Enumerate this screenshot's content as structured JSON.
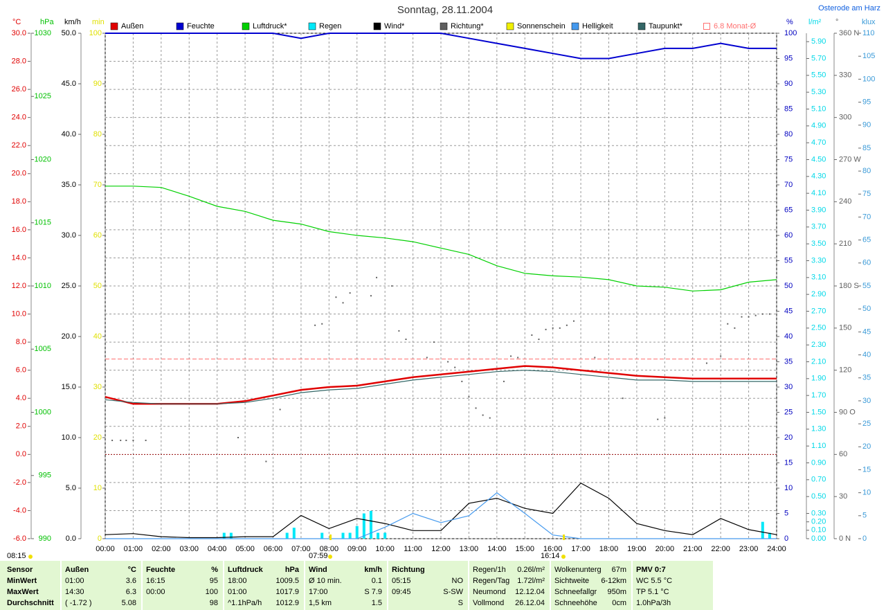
{
  "chart_data": {
    "type": "line",
    "title": "Sonntag, 28.11.2004",
    "location": "Osterode am Harz",
    "grid": true,
    "xlim": [
      0,
      24
    ],
    "xticks": [
      {
        "value": 0,
        "label": "00:00"
      },
      {
        "value": 1,
        "label": "01:00"
      },
      {
        "value": 2,
        "label": "02:00"
      },
      {
        "value": 3,
        "label": "03:00"
      },
      {
        "value": 4,
        "label": "04:00"
      },
      {
        "value": 5,
        "label": "05:00"
      },
      {
        "value": 6,
        "label": "06:00"
      },
      {
        "value": 7,
        "label": "07:00"
      },
      {
        "value": 8,
        "label": "08:00"
      },
      {
        "value": 9,
        "label": "09:00"
      },
      {
        "value": 10,
        "label": "10:00"
      },
      {
        "value": 11,
        "label": "11:00"
      },
      {
        "value": 12,
        "label": "12:00"
      },
      {
        "value": 13,
        "label": "13:00"
      },
      {
        "value": 14,
        "label": "14:00"
      },
      {
        "value": 15,
        "label": "15:00"
      },
      {
        "value": 16,
        "label": "16:00"
      },
      {
        "value": 17,
        "label": "17:00"
      },
      {
        "value": 18,
        "label": "18:00"
      },
      {
        "value": 19,
        "label": "19:00"
      },
      {
        "value": 20,
        "label": "20:00"
      },
      {
        "value": 21,
        "label": "21:00"
      },
      {
        "value": 22,
        "label": "22:00"
      },
      {
        "value": 23,
        "label": "23:00"
      },
      {
        "value": 24,
        "label": "24:00"
      }
    ],
    "x": [
      0,
      1,
      2,
      3,
      4,
      5,
      6,
      7,
      8,
      9,
      10,
      11,
      12,
      13,
      14,
      15,
      16,
      17,
      18,
      19,
      20,
      21,
      22,
      23,
      24
    ],
    "axes": [
      {
        "unit": "°C",
        "color": "#e00000",
        "lim": [
          -6,
          30
        ],
        "ticks": [
          {
            "value": -6,
            "label": "-6.0"
          },
          {
            "value": -4,
            "label": "-4.0"
          },
          {
            "value": -2,
            "label": "-2.0"
          },
          {
            "value": 0,
            "label": "0.0"
          },
          {
            "value": 2,
            "label": "2.0"
          },
          {
            "value": 4,
            "label": "4.0"
          },
          {
            "value": 6,
            "label": "6.0"
          },
          {
            "value": 8,
            "label": "8.0"
          },
          {
            "value": 10,
            "label": "10.0"
          },
          {
            "value": 12,
            "label": "12.0"
          },
          {
            "value": 14,
            "label": "14.0"
          },
          {
            "value": 16,
            "label": "16.0"
          },
          {
            "value": 18,
            "label": "18.0"
          },
          {
            "value": 20,
            "label": "20.0"
          },
          {
            "value": 22,
            "label": "22.0"
          },
          {
            "value": 24,
            "label": "24.0"
          },
          {
            "value": 26,
            "label": "26.0"
          },
          {
            "value": 28,
            "label": "28.0"
          },
          {
            "value": 30,
            "label": "30.0"
          }
        ]
      },
      {
        "unit": "hPa",
        "color": "#00c000",
        "lim": [
          990,
          1030
        ],
        "ticks": [
          990,
          995,
          1000,
          1005,
          1010,
          1015,
          1020,
          1025,
          1030
        ]
      },
      {
        "unit": "km/h",
        "color": "#000000",
        "lim": [
          0,
          50
        ],
        "ticks": [
          {
            "value": 0,
            "label": "0.0"
          },
          {
            "value": 5,
            "label": "5.0"
          },
          {
            "value": 10,
            "label": "10.0"
          },
          {
            "value": 15,
            "label": "15.0"
          },
          {
            "value": 20,
            "label": "20.0"
          },
          {
            "value": 25,
            "label": "25.0"
          },
          {
            "value": 30,
            "label": "30.0"
          },
          {
            "value": 35,
            "label": "35.0"
          },
          {
            "value": 40,
            "label": "40.0"
          },
          {
            "value": 45,
            "label": "45.0"
          },
          {
            "value": 50,
            "label": "50.0"
          }
        ]
      },
      {
        "unit": "min",
        "color": "#e0e000",
        "lim": [
          0,
          100
        ],
        "ticks": [
          0,
          10,
          20,
          30,
          40,
          50,
          60,
          70,
          80,
          90,
          100
        ]
      },
      {
        "unit": "%",
        "color": "#0000c0",
        "lim": [
          0,
          100
        ],
        "ticks": [
          0,
          5,
          10,
          15,
          20,
          25,
          30,
          35,
          40,
          45,
          50,
          55,
          60,
          65,
          70,
          75,
          80,
          85,
          90,
          95,
          100
        ]
      },
      {
        "unit": "l/m²",
        "color": "#00d8e8",
        "lim": [
          0,
          6
        ],
        "ticks": [
          {
            "value": 0,
            "label": "0.00"
          },
          {
            "value": 0.1,
            "label": "0.10"
          },
          {
            "value": 0.2,
            "label": "0.20"
          },
          {
            "value": 0.3,
            "label": "0.30"
          },
          {
            "value": 0.5,
            "label": "0.50"
          },
          {
            "value": 0.7,
            "label": "0.70"
          },
          {
            "value": 0.9,
            "label": "0.90"
          },
          {
            "value": 1.1,
            "label": "1.10"
          },
          {
            "value": 1.3,
            "label": "1.30"
          },
          {
            "value": 1.5,
            "label": "1.50"
          },
          {
            "value": 1.7,
            "label": "1.70"
          },
          {
            "value": 1.9,
            "label": "1.90"
          },
          {
            "value": 2.1,
            "label": "2.10"
          },
          {
            "value": 2.3,
            "label": "2.30"
          },
          {
            "value": 2.5,
            "label": "2.50"
          },
          {
            "value": 2.7,
            "label": "2.70"
          },
          {
            "value": 2.9,
            "label": "2.90"
          },
          {
            "value": 3.1,
            "label": "3.10"
          },
          {
            "value": 3.3,
            "label": "3.30"
          },
          {
            "value": 3.5,
            "label": "3.50"
          },
          {
            "value": 3.7,
            "label": "3.70"
          },
          {
            "value": 3.9,
            "label": "3.90"
          },
          {
            "value": 4.1,
            "label": "4.10"
          },
          {
            "value": 4.3,
            "label": "4.30"
          },
          {
            "value": 4.5,
            "label": "4.50"
          },
          {
            "value": 4.7,
            "label": "4.70"
          },
          {
            "value": 4.9,
            "label": "4.90"
          },
          {
            "value": 5.1,
            "label": "5.10"
          },
          {
            "value": 5.3,
            "label": "5.30"
          },
          {
            "value": 5.5,
            "label": "5.50"
          },
          {
            "value": 5.7,
            "label": "5.70"
          },
          {
            "value": 5.9,
            "label": "5.90"
          }
        ]
      },
      {
        "unit": "°",
        "color": "#606060",
        "lim": [
          0,
          360
        ],
        "ticks": [
          {
            "value": 0,
            "label": "0 N"
          },
          30,
          60,
          {
            "value": 90,
            "label": "90 O"
          },
          120,
          150,
          {
            "value": 180,
            "label": "180 S"
          },
          210,
          240,
          {
            "value": 270,
            "label": "270 W"
          },
          300,
          330,
          {
            "value": 360,
            "label": "360 N"
          }
        ]
      },
      {
        "unit": "klux",
        "color": "#3a9ad8",
        "lim": [
          0,
          110
        ],
        "ticks": [
          0,
          5,
          10,
          15,
          20,
          25,
          30,
          35,
          40,
          45,
          50,
          55,
          60,
          65,
          70,
          75,
          80,
          85,
          90,
          95,
          100,
          105,
          110
        ]
      }
    ],
    "series": [
      {
        "name": "Außen",
        "color": "#e00000",
        "axis": 0,
        "values": [
          4.1,
          3.6,
          3.6,
          3.6,
          3.6,
          3.8,
          4.2,
          4.6,
          4.8,
          4.9,
          5.2,
          5.5,
          5.7,
          5.9,
          6.1,
          6.3,
          6.2,
          6.0,
          5.8,
          5.6,
          5.5,
          5.4,
          5.4,
          5.4,
          5.4
        ]
      },
      {
        "name": "Feuchte",
        "color": "#0000d0",
        "axis": 4,
        "values": [
          100,
          100,
          100,
          100,
          100,
          100,
          100,
          99,
          100,
          100,
          100,
          100,
          100,
          99,
          98,
          97,
          96,
          95,
          95,
          96,
          97,
          97,
          98,
          97,
          97
        ]
      },
      {
        "name": "Luftdruck*",
        "color": "#00d000",
        "axis": 1,
        "values": [
          1017.9,
          1017.9,
          1017.8,
          1017.1,
          1016.3,
          1015.9,
          1015.2,
          1014.9,
          1014.3,
          1014.0,
          1013.8,
          1013.5,
          1013.0,
          1012.5,
          1011.6,
          1011.0,
          1010.8,
          1010.7,
          1010.5,
          1010.0,
          1009.9,
          1009.6,
          1009.7,
          1010.3,
          1010.5
        ]
      },
      {
        "name": "Regen",
        "color": "#00e8f8",
        "axis": 5,
        "kind": "bars",
        "x": [
          4.25,
          4.5,
          6.5,
          6.75,
          7.75,
          8.5,
          8.75,
          9.0,
          9.25,
          9.5,
          9.75,
          10.0,
          23.5,
          23.75
        ],
        "values": [
          0.07,
          0.07,
          0.07,
          0.13,
          0.07,
          0.07,
          0.07,
          0.15,
          0.3,
          0.33,
          0.07,
          0.07,
          0.2,
          0.07
        ]
      },
      {
        "name": "Wind*",
        "color": "#000000",
        "axis": 2,
        "values": [
          0.4,
          0.5,
          0.2,
          0.1,
          0.1,
          0.2,
          0.2,
          2.3,
          1.0,
          2.0,
          1.5,
          0.8,
          0.8,
          3.5,
          4.0,
          3.0,
          2.5,
          5.5,
          4.0,
          1.5,
          0.8,
          0.4,
          2.0,
          0.9,
          0.4
        ]
      },
      {
        "name": "Richtung*",
        "color": "#606060",
        "axis": 6,
        "kind": "dots",
        "x": [
          0.25,
          0.55,
          0.75,
          1.0,
          1.45,
          4.75,
          5.75,
          6.25,
          7.5,
          7.75,
          8.25,
          8.5,
          8.75,
          9.5,
          9.7,
          10.25,
          10.5,
          10.75,
          11.5,
          11.75,
          12.25,
          12.5,
          12.75,
          13.0,
          13.25,
          13.5,
          13.75,
          14.25,
          14.5,
          14.75,
          15.25,
          15.5,
          15.75,
          16.0,
          16.25,
          16.5,
          16.75,
          17.5,
          18.5,
          19.75,
          20.0,
          21.5,
          22.0,
          22.25,
          22.5,
          22.75,
          23.0,
          23.25,
          23.5,
          23.75
        ],
        "values": [
          70,
          70,
          70,
          70,
          70,
          72,
          55,
          92,
          152,
          153,
          172,
          168,
          175,
          173,
          186,
          180,
          148,
          142,
          129,
          140,
          126,
          122,
          112,
          101,
          93,
          88,
          86,
          112,
          130,
          129,
          145,
          142,
          149,
          150,
          150,
          152,
          155,
          129,
          100,
          85,
          86,
          125,
          130,
          153,
          150,
          158,
          158,
          159,
          160,
          160
        ]
      },
      {
        "name": "Sonnenschein",
        "color": "#f0f000",
        "axis": 3
      },
      {
        "name": "Helligkeit",
        "color": "#4499ee",
        "axis": 7,
        "values": [
          0,
          0,
          0,
          0,
          0,
          0,
          0,
          0,
          0,
          0,
          2.5,
          5.5,
          3.5,
          5,
          10,
          5.5,
          0.8,
          0,
          0,
          0,
          0,
          0,
          0,
          0,
          0
        ]
      },
      {
        "name": "Taupunkt*",
        "color": "#336666",
        "axis": 0,
        "values": [
          3.9,
          3.7,
          3.6,
          3.6,
          3.6,
          3.7,
          4.0,
          4.4,
          4.6,
          4.7,
          5.0,
          5.3,
          5.5,
          5.7,
          5.9,
          6.0,
          5.9,
          5.7,
          5.5,
          5.3,
          5.3,
          5.2,
          5.2,
          5.2,
          5.2
        ]
      },
      {
        "name": "6.8 Monat-Ø",
        "color": "#ff7070",
        "axis": 0,
        "kind": "reference",
        "value": 6.8
      }
    ],
    "sun_labels": [
      "08:15",
      "07:59",
      "16:14"
    ]
  },
  "stats": {
    "blocks": [
      [
        {
          "l": "Sensor"
        },
        {
          "l": "MinWert"
        },
        {
          "l": "MaxWert"
        },
        {
          "l": "Durchschnitt"
        }
      ],
      [
        {
          "l": "Außen",
          "r": "°C"
        },
        {
          "l": "01:00",
          "r": "3.6"
        },
        {
          "l": "14:30",
          "r": "6.3"
        },
        {
          "l": "( -1.72 )",
          "r": "5.08"
        }
      ],
      [
        {
          "l": "Feuchte",
          "r": "%"
        },
        {
          "l": "16:15",
          "r": "95"
        },
        {
          "l": "00:00",
          "r": "100"
        },
        {
          "r": "98"
        }
      ],
      [
        {
          "l": "Luftdruck",
          "r": "hPa"
        },
        {
          "l": "18:00",
          "r": "1009.5"
        },
        {
          "l": "01:00",
          "r": "1017.9"
        },
        {
          "l": "^1.1hPa/h",
          "r": "1012.9"
        }
      ],
      [
        {
          "l": "Wind",
          "r": "km/h"
        },
        {
          "l": "Ø 10 min.",
          "r": "0.1"
        },
        {
          "l": "17:00",
          "r": "S 7.9"
        },
        {
          "l": "1,5 km",
          "r": "1.5"
        }
      ],
      [
        {
          "l": "Richtung"
        },
        {
          "l": "05:15",
          "r": "NO"
        },
        {
          "l": "09:45",
          "r": "S-SW"
        },
        {
          "r": "S"
        }
      ],
      [
        {
          "l": "Regen/1h",
          "r": "0.26l/m²"
        },
        {
          "l": "Regen/Tag",
          "r": "1.72l/m²"
        },
        {
          "l": "Neumond",
          "r": "12.12.04"
        },
        {
          "l": "Vollmond",
          "r": "26.12.04"
        }
      ],
      [
        {
          "l": "Wolkenunterg",
          "r": "67m"
        },
        {
          "l": "Sichtweite",
          "r": "6-12km"
        },
        {
          "l": "Schneefallgr",
          "r": "950m"
        },
        {
          "l": "Schneehöhe",
          "r": "0cm"
        }
      ],
      [
        {
          "l": "PMV 0:7"
        },
        {
          "l": "WC 5.5 °C"
        },
        {
          "l": "TP 5.1 °C"
        },
        {
          "l": "1.0hPa/3h"
        }
      ]
    ]
  }
}
